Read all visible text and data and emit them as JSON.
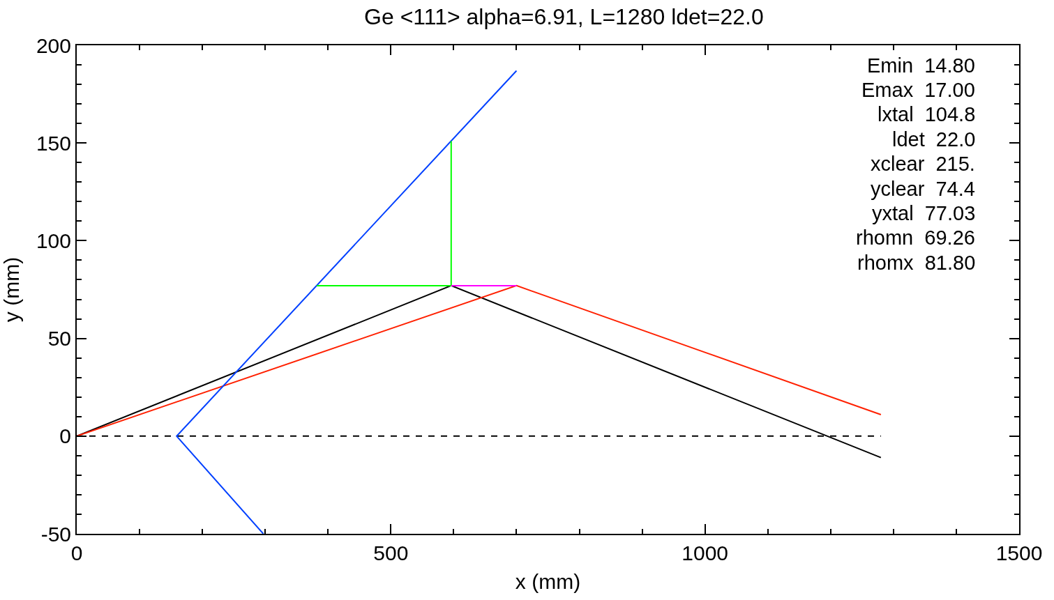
{
  "chart_data": {
    "type": "line",
    "title": "Ge <111> alpha=6.91, L=1280 ldet=22.0",
    "xlabel": "x (mm)",
    "ylabel": "y (mm)",
    "series": [
      {
        "x": [
          0,
          1280
        ],
        "values": [
          0,
          0
        ],
        "color": "#000000",
        "line_style": "dashed"
      },
      {
        "x": [
          0,
          596,
          1280
        ],
        "values": [
          0,
          77,
          -11
        ],
        "color": "#000000"
      },
      {
        "x": [
          0,
          700,
          1280
        ],
        "values": [
          0,
          77,
          11
        ],
        "color": "#ff2000"
      },
      {
        "x": [
          297,
          159,
          700
        ],
        "values": [
          -50,
          0,
          187
        ],
        "color": "#0040ff"
      },
      {
        "x": [
          382,
          596,
          596
        ],
        "values": [
          77,
          77,
          151
        ],
        "color": "#00ff00"
      },
      {
        "x": [
          596,
          700
        ],
        "values": [
          77,
          77
        ],
        "color": "#ff00ff"
      }
    ],
    "xlim": [
      0,
      1500
    ],
    "ylim": [
      -50,
      200
    ],
    "xticks": [
      0,
      {
        "value": 100,
        "label": null
      },
      {
        "value": 200,
        "label": null
      },
      {
        "value": 300,
        "label": null
      },
      {
        "value": 400,
        "label": null
      },
      500,
      {
        "value": 600,
        "label": null
      },
      {
        "value": 700,
        "label": null
      },
      {
        "value": 800,
        "label": null
      },
      {
        "value": 900,
        "label": null
      },
      1000,
      {
        "value": 1100,
        "label": null
      },
      {
        "value": 1200,
        "label": null
      },
      {
        "value": 1300,
        "label": null
      },
      {
        "value": 1400,
        "label": null
      },
      1500
    ],
    "yticks": [
      -50,
      {
        "value": -40,
        "label": null
      },
      {
        "value": -30,
        "label": null
      },
      {
        "value": -20,
        "label": null
      },
      {
        "value": -10,
        "label": null
      },
      0,
      {
        "value": 10,
        "label": null
      },
      {
        "value": 20,
        "label": null
      },
      {
        "value": 30,
        "label": null
      },
      {
        "value": 40,
        "label": null
      },
      50,
      {
        "value": 60,
        "label": null
      },
      {
        "value": 70,
        "label": null
      },
      {
        "value": 80,
        "label": null
      },
      {
        "value": 90,
        "label": null
      },
      100,
      {
        "value": 110,
        "label": null
      },
      {
        "value": 120,
        "label": null
      },
      {
        "value": 130,
        "label": null
      },
      {
        "value": 140,
        "label": null
      },
      150,
      {
        "value": 160,
        "label": null
      },
      {
        "value": 170,
        "label": null
      },
      {
        "value": 180,
        "label": null
      },
      {
        "value": 190,
        "label": null
      },
      200
    ],
    "marker": "none",
    "annotations": [
      "Emin  14.80",
      "Emax  17.00",
      "lxtal  104.8",
      "ldet  22.0",
      "xclear  215.",
      "yclear  74.4",
      "yxtal  77.03",
      "rhomn  69.26",
      "rhomx  81.80"
    ]
  }
}
